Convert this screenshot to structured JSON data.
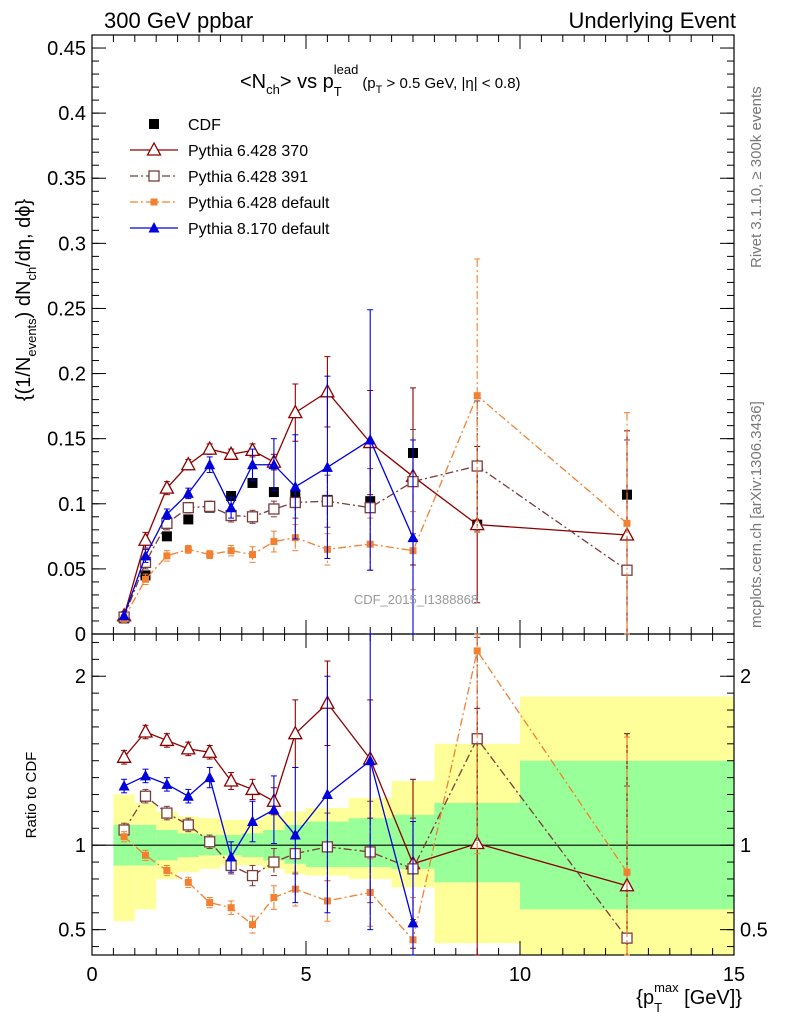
{
  "header": {
    "left": "300 GeV ppbar",
    "right": "Underlying Event",
    "side_top": "Rivet 3.1.10, ≥ 300k events",
    "side_bottom": "mcplots.cern.ch [arXiv:1306.3436]",
    "watermark": "CDF_2015_I1388868"
  },
  "plot_title": {
    "main": "<N",
    "main_sub": "ch",
    "mid": "> vs p",
    "p_sup": "lead",
    "p_sub": "T",
    "cut_open": "(p",
    "cut_sub": "T",
    "cut_rest": " > 0.5 GeV, |η| < 0.8)"
  },
  "chart_data": [
    {
      "type": "scatter",
      "panel": "main",
      "ylabel_parts": {
        "a": "{(1/N",
        "a_sub": "events",
        "b": ") dN",
        "b_sub": "ch",
        "c": "/dη, dϕ}"
      },
      "xlabel_parts": {
        "a": "{p",
        "sup": "max",
        "sub": "T",
        "b": " [GeV]}"
      },
      "xlim": [
        0,
        15
      ],
      "ylim": [
        0,
        0.46
      ],
      "yticks": [
        0,
        0.05,
        0.1,
        0.15,
        0.2,
        0.25,
        0.3,
        0.35,
        0.4,
        0.45
      ],
      "ytick_labels": [
        "0",
        "0.05",
        "0.1",
        "0.15",
        "0.2",
        "0.25",
        "0.3",
        "0.35",
        "0.4",
        "0.45"
      ],
      "xticks": [
        0,
        5,
        10,
        15
      ],
      "xtick_labels": [
        "0",
        "5",
        "10",
        "15"
      ],
      "legend_position": "top-left",
      "series": [
        {
          "name": "CDF",
          "color": "#000000",
          "marker": "filled-square",
          "line": "none",
          "x": [
            0.75,
            1.25,
            1.75,
            2.25,
            2.75,
            3.25,
            3.75,
            4.25,
            4.75,
            5.5,
            6.5,
            7.5,
            9,
            12.5
          ],
          "y": [
            0.012,
            0.045,
            0.075,
            0.088,
            0.097,
            0.106,
            0.116,
            0.109,
            0.107,
            0.103,
            0.102,
            0.139,
            0.084,
            0.107
          ]
        },
        {
          "name": "Pythia 6.428 370",
          "color": "#8b0000",
          "marker": "open-triangle",
          "line": "solid",
          "x": [
            0.75,
            1.25,
            1.75,
            2.25,
            2.75,
            3.25,
            3.75,
            4.25,
            4.75,
            5.5,
            6.5,
            7.5,
            9,
            12.5
          ],
          "y": [
            0.014,
            0.072,
            0.112,
            0.13,
            0.142,
            0.138,
            0.141,
            0.132,
            0.17,
            0.186,
            0.147,
            0.121,
            0.084,
            0.076
          ],
          "err": [
            0.003,
            0.006,
            0.005,
            0.004,
            0.004,
            0.004,
            0.005,
            0.006,
            0.022,
            0.027,
            0.04,
            0.068,
            0.06,
            0.08
          ]
        },
        {
          "name": "Pythia 6.428 391",
          "color": "#7a3b3b",
          "marker": "open-square",
          "line": "dashdot",
          "x": [
            0.75,
            1.25,
            1.75,
            2.25,
            2.75,
            3.25,
            3.75,
            4.25,
            4.75,
            5.5,
            6.5,
            7.5,
            9,
            12.5
          ],
          "y": [
            0.013,
            0.055,
            0.085,
            0.097,
            0.098,
            0.091,
            0.09,
            0.096,
            0.101,
            0.102,
            0.097,
            0.117,
            0.129,
            0.049
          ],
          "err": [
            0.003,
            0.005,
            0.005,
            0.004,
            0.004,
            0.005,
            0.005,
            0.006,
            0.012,
            0.02,
            0.03,
            0.04,
            0.05,
            0.1
          ]
        },
        {
          "name": "Pythia 6.428 default",
          "color": "#f28030",
          "marker": "filled-square-small",
          "line": "dashdot",
          "x": [
            0.75,
            1.25,
            1.75,
            2.25,
            2.75,
            3.25,
            3.75,
            4.25,
            4.75,
            5.5,
            6.5,
            7.5,
            9,
            12.5
          ],
          "y": [
            0.012,
            0.042,
            0.06,
            0.065,
            0.061,
            0.064,
            0.061,
            0.071,
            0.074,
            0.065,
            0.069,
            0.064,
            0.183,
            0.085
          ],
          "err": [
            0.003,
            0.004,
            0.004,
            0.003,
            0.003,
            0.004,
            0.006,
            0.008,
            0.01,
            0.012,
            0.02,
            0.03,
            0.105,
            0.085
          ]
        },
        {
          "name": "Pythia 8.170 default",
          "color": "#0000dd",
          "marker": "filled-triangle",
          "line": "solid",
          "x": [
            0.75,
            1.25,
            1.75,
            2.25,
            2.75,
            3.25,
            3.75,
            4.25,
            4.75,
            5.5,
            6.5,
            7.5
          ],
          "y": [
            0.014,
            0.06,
            0.092,
            0.108,
            0.13,
            0.097,
            0.13,
            0.13,
            0.113,
            0.128,
            0.149,
            0.074
          ],
          "err": [
            0.003,
            0.005,
            0.004,
            0.004,
            0.006,
            0.008,
            0.012,
            0.02,
            0.04,
            0.07,
            0.1,
            0.075
          ]
        }
      ]
    },
    {
      "type": "scatter",
      "panel": "ratio",
      "ylabel": "Ratio to CDF",
      "xlim": [
        0,
        15
      ],
      "ylim": [
        0.35,
        2.25
      ],
      "yticks": [
        0.5,
        1,
        2
      ],
      "ytick_labels": [
        "0.5",
        "1",
        "2"
      ],
      "reference_line": 1,
      "bands": {
        "edges": [
          0.5,
          1,
          1.5,
          2,
          2.5,
          3,
          3.5,
          4,
          4.5,
          5,
          6,
          7,
          8,
          10,
          15
        ],
        "stat_low": [
          0.88,
          0.88,
          0.91,
          0.93,
          0.94,
          0.94,
          0.93,
          0.91,
          0.89,
          0.87,
          0.87,
          0.86,
          0.78,
          0.62
        ],
        "stat_high": [
          1.12,
          1.12,
          1.09,
          1.07,
          1.06,
          1.06,
          1.07,
          1.09,
          1.12,
          1.14,
          1.16,
          1.18,
          1.25,
          1.5
        ],
        "tot_low": [
          0.55,
          0.62,
          0.8,
          0.84,
          0.86,
          0.88,
          0.88,
          0.86,
          0.83,
          0.82,
          0.8,
          0.75,
          0.42,
          0.35
        ],
        "tot_high": [
          1.3,
          1.25,
          1.2,
          1.17,
          1.16,
          1.15,
          1.15,
          1.18,
          1.2,
          1.22,
          1.28,
          1.38,
          1.6,
          1.88
        ],
        "stat_color": "#99ff99",
        "total_color": "#ffff99"
      },
      "series": [
        {
          "name": "Pythia 6.428 370",
          "color": "#8b0000",
          "marker": "open-triangle",
          "line": "solid",
          "x": [
            0.75,
            1.25,
            1.75,
            2.25,
            2.75,
            3.25,
            3.75,
            4.25,
            4.75,
            5.5,
            6.5,
            7.5,
            9,
            12.5
          ],
          "y": [
            1.52,
            1.67,
            1.62,
            1.57,
            1.55,
            1.38,
            1.33,
            1.26,
            1.66,
            1.84,
            1.51,
            0.89,
            1.01,
            0.76
          ],
          "err": [
            0.04,
            0.04,
            0.04,
            0.04,
            0.04,
            0.05,
            0.06,
            0.08,
            0.2,
            0.25,
            0.35,
            0.5,
            0.8,
            0.9
          ]
        },
        {
          "name": "Pythia 6.428 391",
          "color": "#7a3b3b",
          "marker": "open-square",
          "line": "dashdot",
          "x": [
            0.75,
            1.25,
            1.75,
            2.25,
            2.75,
            3.25,
            3.75,
            4.25,
            4.75,
            5.5,
            6.5,
            7.5,
            9,
            12.5
          ],
          "y": [
            1.09,
            1.29,
            1.19,
            1.12,
            1.02,
            0.88,
            0.82,
            0.9,
            0.95,
            0.99,
            0.96,
            0.86,
            1.63,
            0.45
          ],
          "err": [
            0.04,
            0.04,
            0.04,
            0.04,
            0.04,
            0.05,
            0.06,
            0.08,
            0.12,
            0.2,
            0.3,
            0.3,
            0.6,
            0.9
          ]
        },
        {
          "name": "Pythia 6.428 default",
          "color": "#f28030",
          "marker": "filled-square-small",
          "line": "dashdot",
          "x": [
            0.75,
            1.25,
            1.75,
            2.25,
            2.75,
            3.25,
            3.75,
            4.25,
            4.75,
            5.5,
            6.5,
            7.5,
            9,
            12.5
          ],
          "y": [
            1.05,
            0.94,
            0.85,
            0.78,
            0.66,
            0.63,
            0.53,
            0.69,
            0.74,
            0.67,
            0.72,
            0.44,
            2.15,
            0.84
          ],
          "err": [
            0.03,
            0.03,
            0.03,
            0.03,
            0.03,
            0.04,
            0.05,
            0.07,
            0.1,
            0.12,
            0.2,
            0.25,
            1.2,
            0.8
          ]
        },
        {
          "name": "Pythia 8.170 default",
          "color": "#0000dd",
          "marker": "filled-triangle",
          "line": "solid",
          "x": [
            0.75,
            1.25,
            1.75,
            2.25,
            2.75,
            3.25,
            3.75,
            4.25,
            4.75,
            5.5,
            6.5,
            7.5
          ],
          "y": [
            1.35,
            1.41,
            1.36,
            1.29,
            1.4,
            0.93,
            1.14,
            1.21,
            1.06,
            1.3,
            1.5,
            0.54
          ],
          "err": [
            0.04,
            0.04,
            0.04,
            0.04,
            0.06,
            0.09,
            0.12,
            0.2,
            0.4,
            0.7,
            1.0,
            0.6
          ]
        }
      ]
    }
  ]
}
